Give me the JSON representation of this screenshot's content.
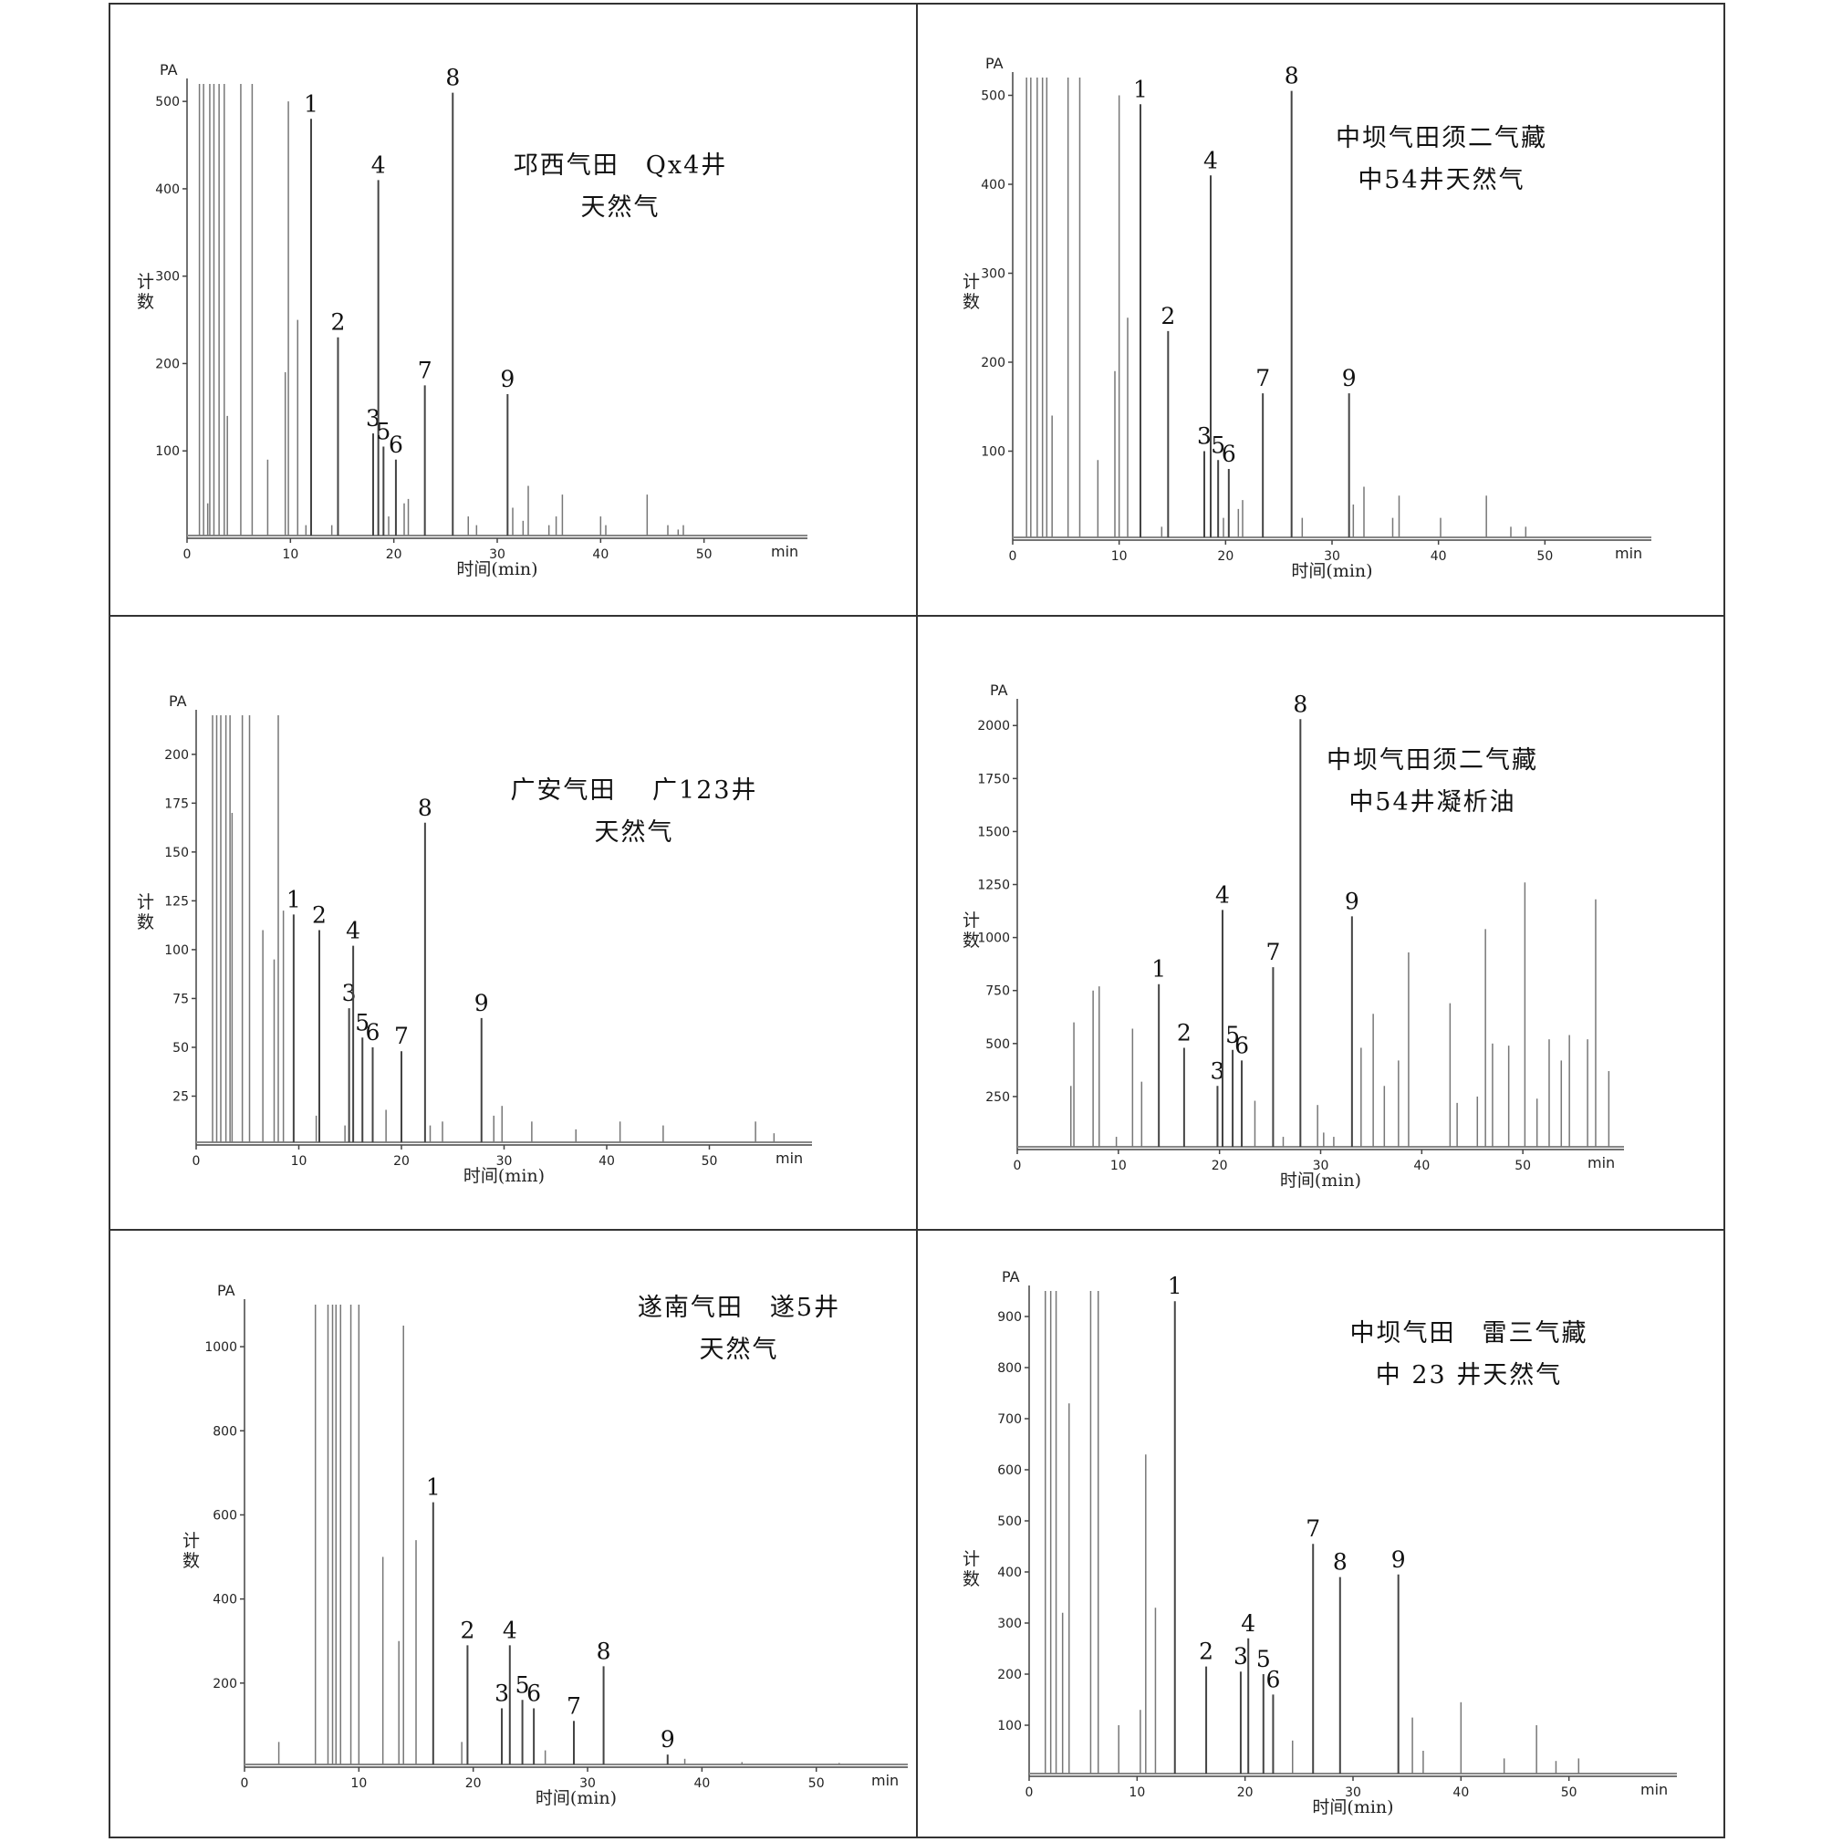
{
  "figure": {
    "y_label": "计数",
    "x_label": "时间(min)"
  },
  "chart_data": [
    {
      "type": "line",
      "annotation": [
        "邛西气田　Qx4井",
        "天然气"
      ],
      "y_unit": "PA",
      "x_unit": "min",
      "xlim": [
        0,
        60
      ],
      "ylim": [
        0,
        520
      ],
      "xticks": [
        0,
        10,
        20,
        30,
        40,
        50
      ],
      "yticks": [
        100,
        200,
        300,
        400,
        500
      ],
      "labeled_peaks": [
        {
          "label": "1",
          "x": 12.0,
          "y": 480
        },
        {
          "label": "2",
          "x": 14.6,
          "y": 230
        },
        {
          "label": "3",
          "x": 18.0,
          "y": 120
        },
        {
          "label": "4",
          "x": 18.5,
          "y": 410
        },
        {
          "label": "5",
          "x": 19.0,
          "y": 105
        },
        {
          "label": "6",
          "x": 20.2,
          "y": 90
        },
        {
          "label": "7",
          "x": 23.0,
          "y": 175
        },
        {
          "label": "8",
          "x": 25.7,
          "y": 510
        },
        {
          "label": "9",
          "x": 31.0,
          "y": 165
        }
      ],
      "other_peaks": [
        {
          "x": 1.2,
          "y": 520
        },
        {
          "x": 1.6,
          "y": 520
        },
        {
          "x": 2.0,
          "y": 40
        },
        {
          "x": 2.2,
          "y": 520
        },
        {
          "x": 2.6,
          "y": 520
        },
        {
          "x": 3.1,
          "y": 520
        },
        {
          "x": 3.6,
          "y": 520
        },
        {
          "x": 3.9,
          "y": 140
        },
        {
          "x": 5.2,
          "y": 520
        },
        {
          "x": 6.3,
          "y": 520
        },
        {
          "x": 7.8,
          "y": 90
        },
        {
          "x": 9.5,
          "y": 190
        },
        {
          "x": 9.8,
          "y": 500
        },
        {
          "x": 10.7,
          "y": 250
        },
        {
          "x": 11.5,
          "y": 15
        },
        {
          "x": 14.0,
          "y": 15
        },
        {
          "x": 19.5,
          "y": 25
        },
        {
          "x": 21.0,
          "y": 40
        },
        {
          "x": 21.4,
          "y": 45
        },
        {
          "x": 27.2,
          "y": 25
        },
        {
          "x": 28.0,
          "y": 15
        },
        {
          "x": 31.5,
          "y": 35
        },
        {
          "x": 32.5,
          "y": 20
        },
        {
          "x": 33.0,
          "y": 60
        },
        {
          "x": 35.0,
          "y": 15
        },
        {
          "x": 35.7,
          "y": 25
        },
        {
          "x": 36.3,
          "y": 50
        },
        {
          "x": 40.0,
          "y": 25
        },
        {
          "x": 40.5,
          "y": 15
        },
        {
          "x": 44.5,
          "y": 50
        },
        {
          "x": 46.5,
          "y": 15
        },
        {
          "x": 47.5,
          "y": 10
        },
        {
          "x": 48.0,
          "y": 15
        }
      ]
    },
    {
      "type": "line",
      "annotation": [
        "中坝气田须二气藏",
        "中54井天然气"
      ],
      "y_unit": "PA",
      "x_unit": "min",
      "xlim": [
        0,
        60
      ],
      "ylim": [
        0,
        520
      ],
      "xticks": [
        0,
        10,
        20,
        30,
        40,
        50
      ],
      "yticks": [
        100,
        200,
        300,
        400,
        500
      ],
      "labeled_peaks": [
        {
          "label": "1",
          "x": 12.0,
          "y": 490
        },
        {
          "label": "2",
          "x": 14.6,
          "y": 235
        },
        {
          "label": "3",
          "x": 18.0,
          "y": 100
        },
        {
          "label": "4",
          "x": 18.6,
          "y": 410
        },
        {
          "label": "5",
          "x": 19.3,
          "y": 90
        },
        {
          "label": "6",
          "x": 20.3,
          "y": 80
        },
        {
          "label": "7",
          "x": 23.5,
          "y": 165
        },
        {
          "label": "8",
          "x": 26.2,
          "y": 505
        },
        {
          "label": "9",
          "x": 31.6,
          "y": 165
        }
      ],
      "other_peaks": [
        {
          "x": 1.3,
          "y": 520
        },
        {
          "x": 1.7,
          "y": 520
        },
        {
          "x": 2.3,
          "y": 520
        },
        {
          "x": 2.8,
          "y": 520
        },
        {
          "x": 3.2,
          "y": 520
        },
        {
          "x": 3.7,
          "y": 140
        },
        {
          "x": 5.2,
          "y": 520
        },
        {
          "x": 6.3,
          "y": 520
        },
        {
          "x": 8.0,
          "y": 90
        },
        {
          "x": 9.6,
          "y": 190
        },
        {
          "x": 10.0,
          "y": 500
        },
        {
          "x": 10.8,
          "y": 250
        },
        {
          "x": 14.0,
          "y": 15
        },
        {
          "x": 19.8,
          "y": 25
        },
        {
          "x": 21.2,
          "y": 35
        },
        {
          "x": 21.6,
          "y": 45
        },
        {
          "x": 27.2,
          "y": 25
        },
        {
          "x": 32.0,
          "y": 40
        },
        {
          "x": 33.0,
          "y": 60
        },
        {
          "x": 35.7,
          "y": 25
        },
        {
          "x": 36.3,
          "y": 50
        },
        {
          "x": 40.2,
          "y": 25
        },
        {
          "x": 44.5,
          "y": 50
        },
        {
          "x": 46.8,
          "y": 15
        },
        {
          "x": 48.2,
          "y": 15
        }
      ]
    },
    {
      "type": "line",
      "annotation": [
        "广安气田　 广123井",
        "天然气"
      ],
      "y_unit": "PA",
      "x_unit": "min",
      "xlim": [
        0,
        60
      ],
      "ylim": [
        0,
        220
      ],
      "xticks": [
        0,
        10,
        20,
        30,
        40,
        50
      ],
      "yticks": [
        25,
        50,
        75,
        100,
        125,
        150,
        175,
        200
      ],
      "labeled_peaks": [
        {
          "label": "1",
          "x": 9.5,
          "y": 118
        },
        {
          "label": "2",
          "x": 12.0,
          "y": 110
        },
        {
          "label": "3",
          "x": 14.9,
          "y": 70
        },
        {
          "label": "4",
          "x": 15.3,
          "y": 102
        },
        {
          "label": "5",
          "x": 16.2,
          "y": 55
        },
        {
          "label": "6",
          "x": 17.2,
          "y": 50
        },
        {
          "label": "7",
          "x": 20.0,
          "y": 48
        },
        {
          "label": "8",
          "x": 22.3,
          "y": 165
        },
        {
          "label": "9",
          "x": 27.8,
          "y": 65
        }
      ],
      "other_peaks": [
        {
          "x": 1.6,
          "y": 220
        },
        {
          "x": 2.0,
          "y": 220
        },
        {
          "x": 2.4,
          "y": 220
        },
        {
          "x": 2.9,
          "y": 220
        },
        {
          "x": 3.3,
          "y": 220
        },
        {
          "x": 3.5,
          "y": 170
        },
        {
          "x": 4.5,
          "y": 220
        },
        {
          "x": 5.2,
          "y": 220
        },
        {
          "x": 6.5,
          "y": 110
        },
        {
          "x": 7.6,
          "y": 95
        },
        {
          "x": 8.0,
          "y": 220
        },
        {
          "x": 8.5,
          "y": 120
        },
        {
          "x": 11.7,
          "y": 15
        },
        {
          "x": 14.5,
          "y": 10
        },
        {
          "x": 18.5,
          "y": 18
        },
        {
          "x": 22.8,
          "y": 10
        },
        {
          "x": 24.0,
          "y": 12
        },
        {
          "x": 29.0,
          "y": 15
        },
        {
          "x": 29.8,
          "y": 20
        },
        {
          "x": 32.7,
          "y": 12
        },
        {
          "x": 37.0,
          "y": 8
        },
        {
          "x": 41.3,
          "y": 12
        },
        {
          "x": 45.5,
          "y": 10
        },
        {
          "x": 54.5,
          "y": 12
        },
        {
          "x": 56.3,
          "y": 6
        }
      ]
    },
    {
      "type": "line",
      "annotation": [
        "中坝气田须二气藏",
        "中54井凝析油"
      ],
      "y_unit": "PA",
      "x_unit": "min",
      "xlim": [
        0,
        60
      ],
      "ylim": [
        0,
        2100
      ],
      "xticks": [
        0,
        10,
        20,
        30,
        40,
        50
      ],
      "yticks": [
        250,
        500,
        750,
        1000,
        1250,
        1500,
        1750,
        2000
      ],
      "labeled_peaks": [
        {
          "label": "1",
          "x": 14.0,
          "y": 780
        },
        {
          "label": "2",
          "x": 16.5,
          "y": 480
        },
        {
          "label": "3",
          "x": 19.8,
          "y": 300
        },
        {
          "label": "4",
          "x": 20.3,
          "y": 1130
        },
        {
          "label": "5",
          "x": 21.3,
          "y": 470
        },
        {
          "label": "6",
          "x": 22.2,
          "y": 420
        },
        {
          "label": "7",
          "x": 25.3,
          "y": 860
        },
        {
          "label": "8",
          "x": 28.0,
          "y": 2030
        },
        {
          "label": "9",
          "x": 33.1,
          "y": 1100
        }
      ],
      "other_peaks": [
        {
          "x": 5.3,
          "y": 300
        },
        {
          "x": 5.6,
          "y": 600
        },
        {
          "x": 7.5,
          "y": 750
        },
        {
          "x": 8.1,
          "y": 770
        },
        {
          "x": 9.8,
          "y": 60
        },
        {
          "x": 11.4,
          "y": 570
        },
        {
          "x": 12.3,
          "y": 320
        },
        {
          "x": 23.5,
          "y": 230
        },
        {
          "x": 26.3,
          "y": 60
        },
        {
          "x": 29.7,
          "y": 210
        },
        {
          "x": 30.3,
          "y": 80
        },
        {
          "x": 31.3,
          "y": 60
        },
        {
          "x": 34.0,
          "y": 480
        },
        {
          "x": 35.2,
          "y": 640
        },
        {
          "x": 36.3,
          "y": 300
        },
        {
          "x": 37.7,
          "y": 420
        },
        {
          "x": 38.7,
          "y": 930
        },
        {
          "x": 42.8,
          "y": 690
        },
        {
          "x": 43.5,
          "y": 220
        },
        {
          "x": 45.5,
          "y": 250
        },
        {
          "x": 46.3,
          "y": 1040
        },
        {
          "x": 47.0,
          "y": 500
        },
        {
          "x": 48.6,
          "y": 490
        },
        {
          "x": 50.2,
          "y": 1260
        },
        {
          "x": 51.4,
          "y": 240
        },
        {
          "x": 52.6,
          "y": 520
        },
        {
          "x": 53.8,
          "y": 420
        },
        {
          "x": 54.6,
          "y": 540
        },
        {
          "x": 56.4,
          "y": 520
        },
        {
          "x": 57.2,
          "y": 1180
        },
        {
          "x": 58.5,
          "y": 370
        }
      ]
    },
    {
      "type": "line",
      "annotation": [
        "遂南气田　遂5井",
        "天然气"
      ],
      "y_unit": "PA",
      "x_unit": "min",
      "xlim": [
        0,
        58
      ],
      "ylim": [
        0,
        1100
      ],
      "xticks": [
        0,
        10,
        20,
        30,
        40,
        50
      ],
      "yticks": [
        200,
        400,
        600,
        800,
        1000
      ],
      "labeled_peaks": [
        {
          "label": "1",
          "x": 16.5,
          "y": 630
        },
        {
          "label": "2",
          "x": 19.5,
          "y": 290
        },
        {
          "label": "3",
          "x": 22.5,
          "y": 140
        },
        {
          "label": "4",
          "x": 23.2,
          "y": 290
        },
        {
          "label": "5",
          "x": 24.3,
          "y": 160
        },
        {
          "label": "6",
          "x": 25.3,
          "y": 140
        },
        {
          "label": "7",
          "x": 28.8,
          "y": 110
        },
        {
          "label": "8",
          "x": 31.4,
          "y": 240
        },
        {
          "label": "9",
          "x": 37.0,
          "y": 30
        }
      ],
      "other_peaks": [
        {
          "x": 3.0,
          "y": 60
        },
        {
          "x": 6.2,
          "y": 1100
        },
        {
          "x": 7.3,
          "y": 1100
        },
        {
          "x": 7.7,
          "y": 1100
        },
        {
          "x": 8.0,
          "y": 1100
        },
        {
          "x": 8.4,
          "y": 1100
        },
        {
          "x": 9.3,
          "y": 1100
        },
        {
          "x": 10.0,
          "y": 1100
        },
        {
          "x": 12.1,
          "y": 500
        },
        {
          "x": 13.5,
          "y": 300
        },
        {
          "x": 13.9,
          "y": 1050
        },
        {
          "x": 15.0,
          "y": 540
        },
        {
          "x": 19.0,
          "y": 60
        },
        {
          "x": 26.3,
          "y": 40
        },
        {
          "x": 38.5,
          "y": 20
        },
        {
          "x": 43.5,
          "y": 12
        },
        {
          "x": 52.0,
          "y": 10
        }
      ]
    },
    {
      "type": "line",
      "annotation": [
        "中坝气田　雷三气藏",
        "中 23 井天然气"
      ],
      "y_unit": "PA",
      "x_unit": "min",
      "xlim": [
        0,
        60
      ],
      "ylim": [
        0,
        950
      ],
      "xticks": [
        0,
        10,
        20,
        30,
        40,
        50
      ],
      "yticks": [
        100,
        200,
        300,
        400,
        500,
        600,
        700,
        800,
        900
      ],
      "labeled_peaks": [
        {
          "label": "1",
          "x": 13.5,
          "y": 930
        },
        {
          "label": "2",
          "x": 16.4,
          "y": 215
        },
        {
          "label": "3",
          "x": 19.6,
          "y": 205
        },
        {
          "label": "4",
          "x": 20.3,
          "y": 270
        },
        {
          "label": "5",
          "x": 21.7,
          "y": 200
        },
        {
          "label": "6",
          "x": 22.6,
          "y": 160
        },
        {
          "label": "7",
          "x": 26.3,
          "y": 455
        },
        {
          "label": "8",
          "x": 28.8,
          "y": 390
        },
        {
          "label": "9",
          "x": 34.2,
          "y": 395
        }
      ],
      "other_peaks": [
        {
          "x": 1.5,
          "y": 950
        },
        {
          "x": 2.0,
          "y": 950
        },
        {
          "x": 2.5,
          "y": 950
        },
        {
          "x": 3.1,
          "y": 320
        },
        {
          "x": 3.7,
          "y": 730
        },
        {
          "x": 5.7,
          "y": 950
        },
        {
          "x": 6.4,
          "y": 950
        },
        {
          "x": 8.3,
          "y": 100
        },
        {
          "x": 10.3,
          "y": 130
        },
        {
          "x": 10.8,
          "y": 630
        },
        {
          "x": 11.7,
          "y": 330
        },
        {
          "x": 24.4,
          "y": 70
        },
        {
          "x": 35.5,
          "y": 115
        },
        {
          "x": 36.5,
          "y": 50
        },
        {
          "x": 40.0,
          "y": 145
        },
        {
          "x": 44.0,
          "y": 35
        },
        {
          "x": 47.0,
          "y": 100
        },
        {
          "x": 48.8,
          "y": 30
        },
        {
          "x": 50.9,
          "y": 35
        }
      ]
    }
  ]
}
